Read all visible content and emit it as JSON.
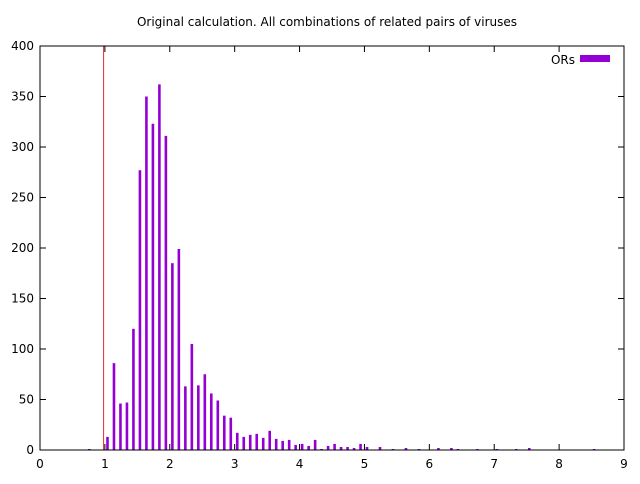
{
  "chart_data": {
    "type": "bar",
    "title": "Original calculation. All combinations of related pairs of viruses",
    "xlabel": "",
    "ylabel": "",
    "xlim": [
      0,
      9
    ],
    "ylim": [
      0,
      400
    ],
    "xticks": [
      "0",
      "1",
      "2",
      "3",
      "4",
      "5",
      "6",
      "7",
      "8",
      "9"
    ],
    "yticks": [
      "0",
      "50",
      "100",
      "150",
      "200",
      "250",
      "300",
      "350",
      "400"
    ],
    "grid": false,
    "legend_position": "top-right",
    "reference_line": {
      "x": 0.98,
      "color": "#e03030"
    },
    "series": [
      {
        "name": "ORs",
        "color": "#9400d3",
        "x": [
          0.76,
          1.04,
          1.14,
          1.24,
          1.34,
          1.44,
          1.54,
          1.64,
          1.74,
          1.84,
          1.94,
          2.04,
          2.14,
          2.24,
          2.34,
          2.44,
          2.54,
          2.64,
          2.74,
          2.84,
          2.94,
          3.04,
          3.14,
          3.24,
          3.34,
          3.44,
          3.54,
          3.64,
          3.74,
          3.84,
          3.94,
          4.04,
          4.14,
          4.24,
          4.34,
          4.44,
          4.54,
          4.64,
          4.74,
          4.84,
          4.94,
          5.04,
          5.24,
          5.44,
          5.64,
          5.84,
          6.14,
          6.34,
          6.44,
          6.74,
          7.04,
          7.34,
          7.54,
          8.54
        ],
        "values": [
          1,
          13,
          86,
          46,
          47,
          120,
          277,
          350,
          323,
          362,
          311,
          185,
          199,
          63,
          105,
          64,
          75,
          56,
          49,
          34,
          32,
          17,
          13,
          15,
          16,
          12,
          19,
          11,
          9,
          10,
          5,
          6,
          4,
          10,
          1,
          4,
          6,
          3,
          3,
          2,
          6,
          3,
          3,
          1,
          2,
          1,
          2,
          2,
          1,
          1,
          1,
          1,
          2,
          1
        ]
      }
    ]
  }
}
